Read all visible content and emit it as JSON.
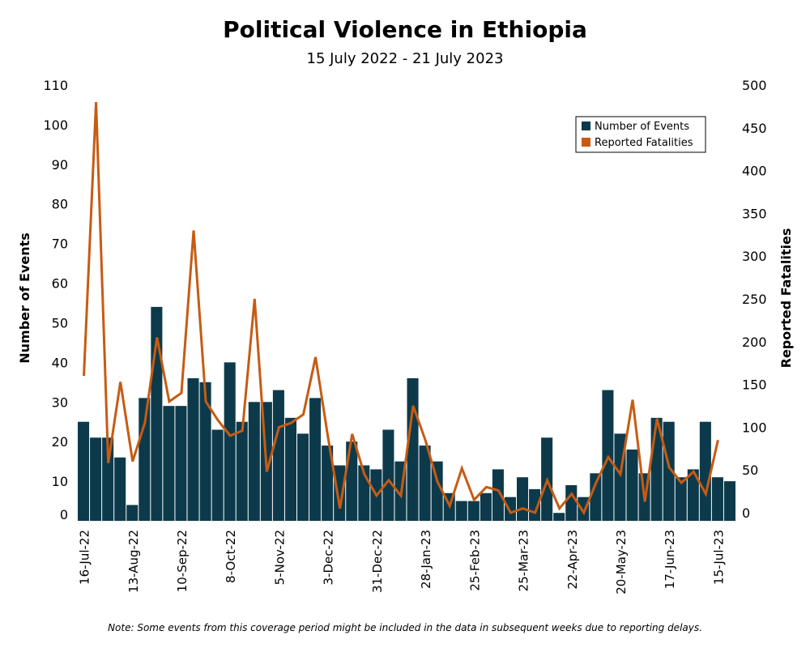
{
  "chart_data": {
    "type": "bar",
    "title": "Political Violence in Ethiopia",
    "subtitle": "15 July 2022 - 21 July 2023",
    "ylabel_left": "Number of Events",
    "ylabel_right": "Reported Fatalities",
    "ylim_left": [
      0,
      110
    ],
    "yticks_left": [
      0,
      10,
      20,
      30,
      40,
      50,
      60,
      70,
      80,
      90,
      100,
      110
    ],
    "ylim_right": [
      0,
      500
    ],
    "yticks_right": [
      0,
      50,
      100,
      150,
      200,
      250,
      300,
      350,
      400,
      450,
      500
    ],
    "legend_position": "top-right",
    "x": [
      "16-Jul-22",
      "23-Jul-22",
      "30-Jul-22",
      "6-Aug-22",
      "13-Aug-22",
      "20-Aug-22",
      "27-Aug-22",
      "3-Sep-22",
      "10-Sep-22",
      "17-Sep-22",
      "24-Sep-22",
      "1-Oct-22",
      "8-Oct-22",
      "15-Oct-22",
      "22-Oct-22",
      "29-Oct-22",
      "5-Nov-22",
      "12-Nov-22",
      "19-Nov-22",
      "26-Nov-22",
      "3-Dec-22",
      "10-Dec-22",
      "17-Dec-22",
      "24-Dec-22",
      "31-Dec-22",
      "7-Jan-23",
      "14-Jan-23",
      "21-Jan-23",
      "28-Jan-23",
      "4-Feb-23",
      "11-Feb-23",
      "18-Feb-23",
      "25-Feb-23",
      "4-Mar-23",
      "11-Mar-23",
      "18-Mar-23",
      "25-Mar-23",
      "1-Apr-23",
      "8-Apr-23",
      "15-Apr-23",
      "22-Apr-23",
      "29-Apr-23",
      "6-May-23",
      "13-May-23",
      "20-May-23",
      "27-May-23",
      "3-Jun-23",
      "10-Jun-23",
      "17-Jun-23",
      "24-Jun-23",
      "1-Jul-23",
      "8-Jul-23",
      "15-Jul-23",
      "22-Jul-23"
    ],
    "xtick_labels": [
      "16-Jul-22",
      "13-Aug-22",
      "10-Sep-22",
      "8-Oct-22",
      "5-Nov-22",
      "3-Dec-22",
      "31-Dec-22",
      "28-Jan-23",
      "25-Feb-23",
      "25-Mar-23",
      "22-Apr-23",
      "20-May-23",
      "17-Jun-23",
      "15-Jul-23"
    ],
    "series": [
      {
        "name": "Number of Events",
        "type": "bar",
        "axis": "left",
        "color": "#0d3a4b",
        "values": [
          25,
          21,
          21,
          16,
          4,
          31,
          54,
          29,
          29,
          36,
          35,
          23,
          40,
          25,
          30,
          30,
          33,
          26,
          22,
          31,
          19,
          14,
          20,
          14,
          13,
          23,
          15,
          36,
          19,
          15,
          7,
          5,
          5,
          7,
          13,
          6,
          11,
          8,
          21,
          2,
          9,
          6,
          12,
          33,
          22,
          18,
          12,
          26,
          25,
          11,
          13,
          25,
          11,
          10
        ]
      },
      {
        "name": "Reported Fatalities",
        "type": "line",
        "axis": "left_index_right",
        "color": "#c75b12",
        "values": [
          160,
          480,
          58,
          153,
          60,
          105,
          205,
          130,
          140,
          330,
          130,
          108,
          90,
          96,
          250,
          48,
          100,
          105,
          115,
          182,
          90,
          5,
          92,
          45,
          20,
          38,
          20,
          125,
          85,
          36,
          8,
          52,
          15,
          30,
          26,
          0,
          5,
          0,
          38,
          5,
          22,
          0,
          35,
          65,
          45,
          132,
          13,
          110,
          53,
          35,
          48,
          22,
          85,
          null
        ]
      }
    ],
    "note": "Note: Some events from this coverage period might be included in the data in subsequent weeks due to reporting delays."
  }
}
